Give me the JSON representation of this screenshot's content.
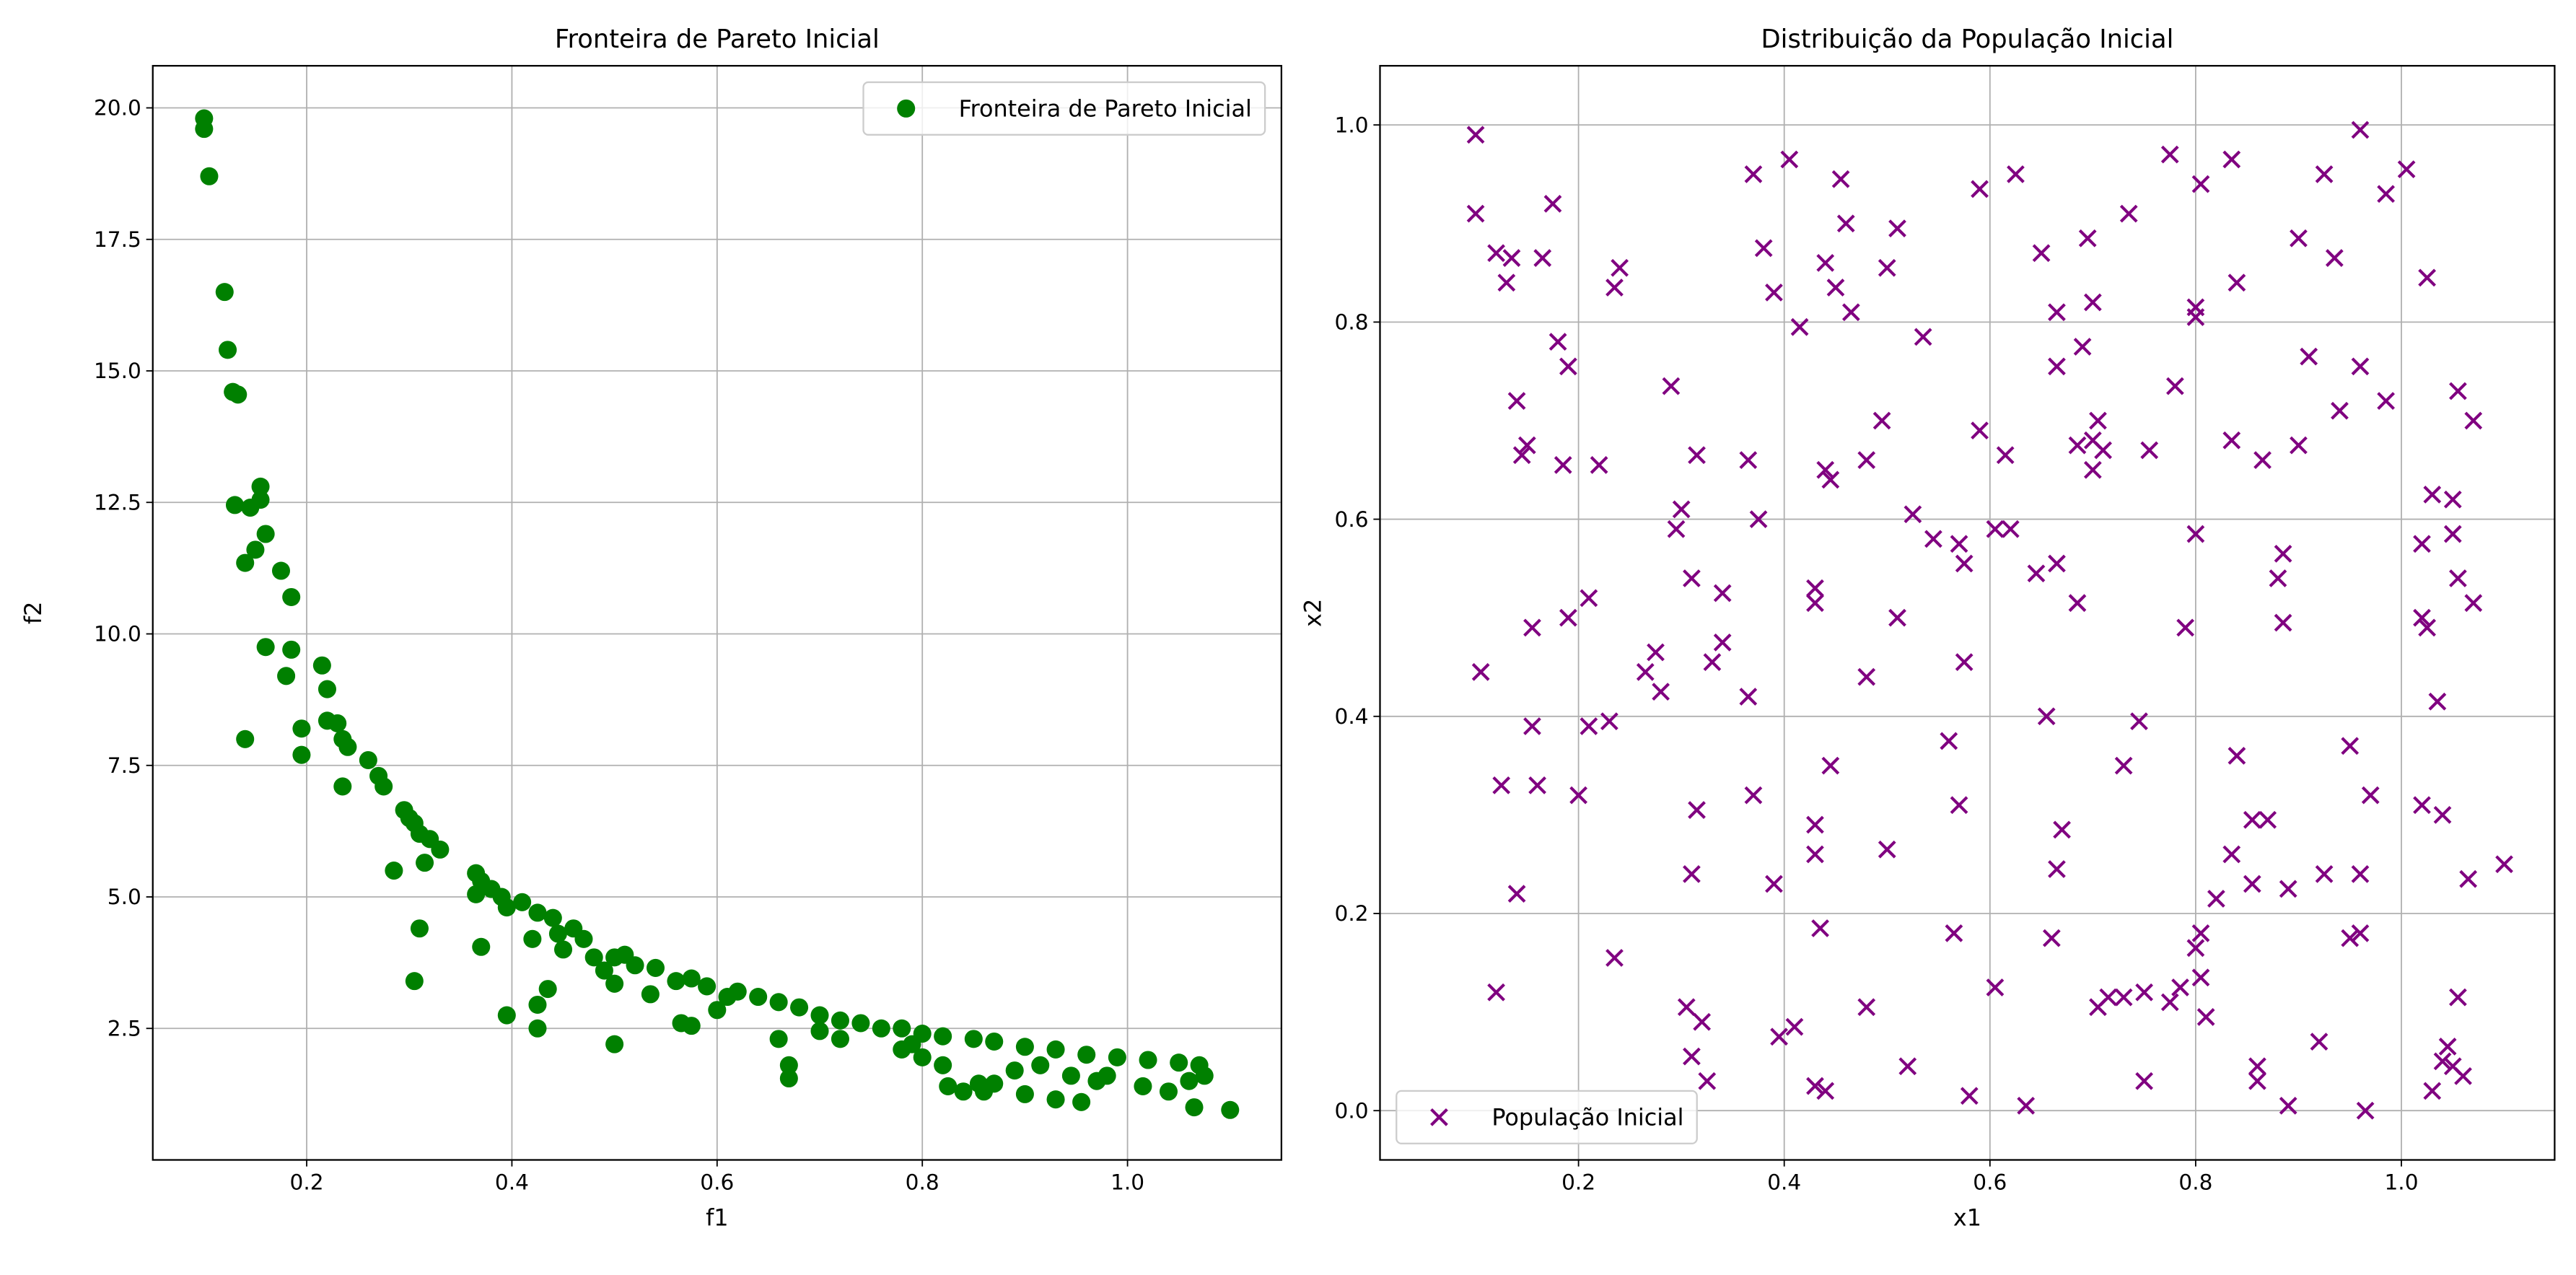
{
  "chart_data": [
    {
      "type": "scatter",
      "title": "Fronteira de Pareto Inicial",
      "xlabel": "f1",
      "ylabel": "f2",
      "xlim": [
        0.05,
        1.15
      ],
      "ylim": [
        0,
        20.8
      ],
      "xticks": [
        0.2,
        0.4,
        0.6,
        0.8,
        {
          "value": 1.0,
          "label": "1.0"
        }
      ],
      "yticks": [
        2.5,
        {
          "value": 5.0,
          "label": "5.0"
        },
        7.5,
        {
          "value": 10.0,
          "label": "10.0"
        },
        12.5,
        {
          "value": 15.0,
          "label": "15.0"
        },
        17.5,
        {
          "value": 20.0,
          "label": "20.0"
        }
      ],
      "grid": true,
      "legend": "upper right",
      "series": [
        {
          "name": "Fronteira de Pareto Inicial",
          "color": "#008000",
          "marker": "o",
          "x": [
            0.1,
            0.1,
            0.105,
            0.12,
            0.123,
            0.128,
            0.133,
            0.13,
            0.145,
            0.155,
            0.155,
            0.15,
            0.14,
            0.16,
            0.175,
            0.185,
            0.16,
            0.185,
            0.18,
            0.14,
            0.195,
            0.195,
            0.215,
            0.22,
            0.22,
            0.23,
            0.235,
            0.24,
            0.235,
            0.26,
            0.27,
            0.275,
            0.285,
            0.295,
            0.3,
            0.305,
            0.31,
            0.32,
            0.33,
            0.315,
            0.31,
            0.305,
            0.365,
            0.37,
            0.365,
            0.38,
            0.39,
            0.37,
            0.395,
            0.41,
            0.42,
            0.425,
            0.44,
            0.445,
            0.45,
            0.46,
            0.47,
            0.48,
            0.49,
            0.5,
            0.51,
            0.52,
            0.54,
            0.5,
            0.535,
            0.56,
            0.575,
            0.59,
            0.6,
            0.61,
            0.62,
            0.64,
            0.66,
            0.68,
            0.7,
            0.72,
            0.74,
            0.76,
            0.78,
            0.8,
            0.82,
            0.85,
            0.87,
            0.9,
            0.93,
            0.96,
            0.99,
            1.02,
            1.05,
            1.07,
            0.395,
            0.425,
            0.435,
            0.425,
            0.5,
            0.565,
            0.575,
            0.66,
            0.67,
            0.67,
            0.7,
            0.72,
            0.78,
            0.79,
            0.8,
            0.82,
            0.825,
            0.84,
            0.855,
            0.86,
            0.87,
            0.89,
            0.9,
            0.915,
            0.93,
            0.945,
            0.955,
            0.97,
            0.98,
            1.015,
            1.04,
            1.06,
            1.065,
            1.1,
            1.075
          ],
          "values": [
            19.8,
            19.6,
            18.7,
            16.5,
            15.4,
            14.6,
            14.55,
            12.45,
            12.4,
            12.8,
            12.55,
            11.6,
            11.35,
            11.9,
            11.2,
            10.7,
            9.75,
            9.7,
            9.2,
            8.0,
            8.2,
            7.7,
            9.4,
            8.95,
            8.35,
            8.3,
            8.0,
            7.85,
            7.1,
            7.6,
            7.3,
            7.1,
            5.5,
            6.65,
            6.5,
            6.4,
            6.2,
            6.1,
            5.9,
            5.65,
            4.4,
            3.4,
            5.45,
            5.3,
            5.05,
            5.15,
            5.0,
            4.05,
            4.8,
            4.9,
            4.2,
            4.7,
            4.6,
            4.3,
            4.0,
            4.4,
            4.2,
            3.85,
            3.6,
            3.85,
            3.9,
            3.7,
            3.65,
            3.35,
            3.15,
            3.4,
            3.45,
            3.3,
            2.85,
            3.1,
            3.2,
            3.1,
            3.0,
            2.9,
            2.75,
            2.65,
            2.6,
            2.5,
            2.5,
            2.4,
            2.35,
            2.3,
            2.25,
            2.15,
            2.1,
            2.0,
            1.95,
            1.9,
            1.85,
            1.8,
            2.75,
            2.95,
            3.25,
            2.5,
            2.2,
            2.6,
            2.55,
            2.3,
            1.8,
            1.55,
            2.45,
            2.3,
            2.1,
            2.2,
            1.95,
            1.8,
            1.4,
            1.3,
            1.45,
            1.3,
            1.45,
            1.7,
            1.25,
            1.8,
            1.15,
            1.6,
            1.1,
            1.5,
            1.6,
            1.4,
            1.3,
            1.5,
            1.0,
            0.95,
            1.6
          ]
        }
      ]
    },
    {
      "type": "scatter",
      "title": "Distribuição da População Inicial",
      "xlabel": "x1",
      "ylabel": "x2",
      "xlim": [
        0.007,
        1.149
      ],
      "ylim": [
        -0.05,
        1.06
      ],
      "xticks": [
        0.2,
        0.4,
        0.6,
        0.8,
        {
          "value": 1.0,
          "label": "1.0"
        }
      ],
      "yticks": [
        {
          "value": 0.0,
          "label": "0.0"
        },
        0.2,
        0.4,
        0.6,
        0.8,
        {
          "value": 1.0,
          "label": "1.0"
        }
      ],
      "grid": true,
      "legend": "lower left",
      "series": [
        {
          "name": "População Inicial",
          "color": "#800080",
          "marker": "x",
          "x": [
            0.1,
            0.1,
            0.12,
            0.13,
            0.135,
            0.165,
            0.175,
            0.18,
            0.19,
            0.14,
            0.15,
            0.145,
            0.185,
            0.22,
            0.235,
            0.24,
            0.29,
            0.315,
            0.3,
            0.295,
            0.365,
            0.37,
            0.38,
            0.39,
            0.405,
            0.415,
            0.44,
            0.45,
            0.455,
            0.46,
            0.465,
            0.5,
            0.51,
            0.535,
            0.59,
            0.625,
            0.65,
            0.665,
            0.665,
            0.69,
            0.695,
            0.7,
            0.735,
            0.775,
            0.8,
            0.8,
            0.805,
            0.835,
            0.84,
            0.9,
            0.925,
            0.935,
            0.96,
            0.985,
            1.005,
            1.025,
            0.91,
            0.96,
            0.94,
            0.985,
            1.055,
            1.07,
            0.78,
            0.755,
            0.7,
            0.705,
            0.71,
            0.685,
            0.7,
            0.59,
            0.615,
            0.48,
            0.495,
            0.44,
            0.445,
            0.375,
            0.31,
            0.34,
            0.21,
            0.19,
            0.155,
            0.105,
            0.155,
            0.21,
            0.23,
            0.265,
            0.275,
            0.28,
            0.33,
            0.34,
            0.365,
            0.43,
            0.43,
            0.48,
            0.51,
            0.525,
            0.545,
            0.57,
            0.575,
            0.605,
            0.62,
            0.645,
            0.665,
            0.685,
            0.575,
            0.56,
            0.655,
            0.745,
            0.73,
            0.79,
            0.8,
            0.835,
            0.865,
            0.88,
            0.885,
            0.885,
            0.9,
            1.02,
            1.03,
            1.05,
            1.05,
            1.055,
            1.07,
            1.02,
            1.025,
            1.035,
            0.95,
            0.97,
            1.02,
            1.04,
            1.1,
            1.065,
            0.96,
            0.925,
            0.89,
            0.855,
            0.87,
            0.84,
            0.835,
            0.855,
            0.82,
            0.8,
            0.805,
            0.805,
            0.81,
            0.785,
            0.775,
            0.75,
            0.73,
            0.715,
            0.705,
            0.75,
            0.665,
            0.67,
            0.66,
            0.605,
            0.635,
            0.58,
            0.565,
            0.57,
            0.52,
            0.5,
            0.48,
            0.445,
            0.43,
            0.43,
            0.435,
            0.44,
            0.43,
            0.41,
            0.395,
            0.39,
            0.37,
            0.315,
            0.31,
            0.305,
            0.31,
            0.32,
            0.325,
            0.235,
            0.2,
            0.16,
            0.125,
            0.14,
            0.12,
            0.86,
            0.86,
            0.89,
            0.92,
            0.95,
            0.96,
            0.965,
            1.03,
            1.04,
            1.045,
            1.05,
            1.055,
            1.06
          ],
          "values": [
            0.99,
            0.91,
            0.87,
            0.84,
            0.865,
            0.865,
            0.92,
            0.78,
            0.755,
            0.72,
            0.675,
            0.665,
            0.655,
            0.655,
            0.835,
            0.855,
            0.735,
            0.665,
            0.61,
            0.59,
            0.66,
            0.95,
            0.875,
            0.83,
            0.965,
            0.795,
            0.86,
            0.835,
            0.945,
            0.9,
            0.81,
            0.855,
            0.895,
            0.785,
            0.935,
            0.95,
            0.87,
            0.81,
            0.755,
            0.775,
            0.885,
            0.82,
            0.91,
            0.97,
            0.815,
            0.805,
            0.94,
            0.965,
            0.84,
            0.885,
            0.95,
            0.865,
            0.995,
            0.93,
            0.955,
            0.845,
            0.765,
            0.755,
            0.71,
            0.72,
            0.73,
            0.7,
            0.735,
            0.67,
            0.68,
            0.7,
            0.67,
            0.675,
            0.65,
            0.69,
            0.665,
            0.66,
            0.7,
            0.65,
            0.64,
            0.6,
            0.54,
            0.525,
            0.52,
            0.5,
            0.49,
            0.445,
            0.39,
            0.39,
            0.395,
            0.445,
            0.465,
            0.425,
            0.455,
            0.475,
            0.42,
            0.53,
            0.515,
            0.44,
            0.5,
            0.605,
            0.58,
            0.575,
            0.555,
            0.59,
            0.59,
            0.545,
            0.555,
            0.515,
            0.455,
            0.375,
            0.4,
            0.395,
            0.35,
            0.49,
            0.585,
            0.68,
            0.66,
            0.54,
            0.565,
            0.495,
            0.675,
            0.575,
            0.625,
            0.62,
            0.585,
            0.54,
            0.515,
            0.5,
            0.49,
            0.415,
            0.37,
            0.32,
            0.31,
            0.3,
            0.25,
            0.235,
            0.24,
            0.24,
            0.225,
            0.295,
            0.295,
            0.36,
            0.26,
            0.23,
            0.215,
            0.165,
            0.135,
            0.18,
            0.095,
            0.125,
            0.11,
            0.12,
            0.115,
            0.115,
            0.105,
            0.03,
            0.245,
            0.285,
            0.175,
            0.125,
            0.005,
            0.015,
            0.18,
            0.31,
            0.045,
            0.265,
            0.105,
            0.35,
            0.29,
            0.26,
            0.185,
            0.02,
            0.025,
            0.085,
            0.075,
            0.23,
            0.32,
            0.305,
            0.24,
            0.105,
            0.055,
            0.09,
            0.03,
            0.155,
            0.32,
            0.33,
            0.33,
            0.22,
            0.12,
            0.045,
            0.03,
            0.005,
            0.07,
            0.175,
            0.18,
            0.0,
            0.02,
            0.05,
            0.065,
            0.045,
            0.115,
            0.035
          ]
        }
      ]
    }
  ]
}
